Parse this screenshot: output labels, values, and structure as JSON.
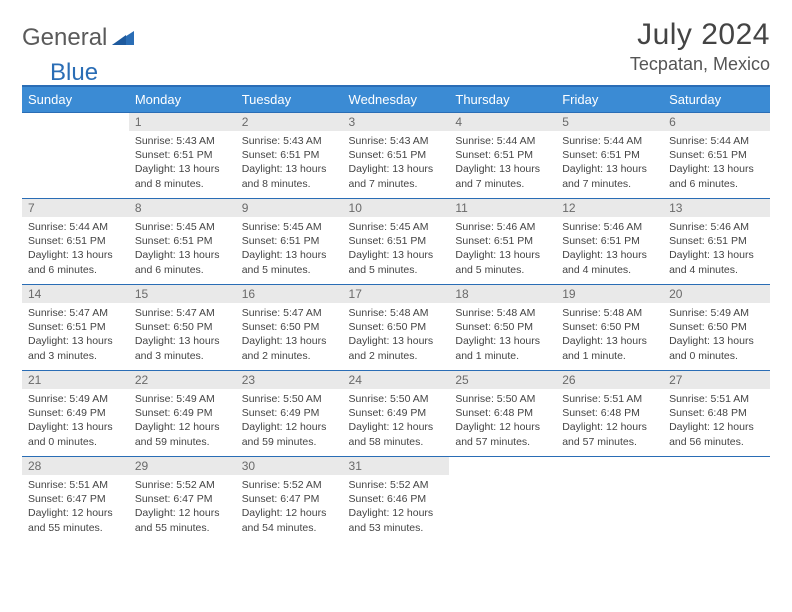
{
  "logo": {
    "word1": "General",
    "word2": "Blue",
    "color1": "#5a5a5a",
    "color2": "#2a6db5"
  },
  "title": "July 2024",
  "location": "Tecpatan, Mexico",
  "header_bg": "#3b8bd4",
  "header_border": "#2a6db5",
  "daynum_bg": "#e9e9e9",
  "weekdays": [
    "Sunday",
    "Monday",
    "Tuesday",
    "Wednesday",
    "Thursday",
    "Friday",
    "Saturday"
  ],
  "weeks": [
    [
      null,
      {
        "n": "1",
        "r": "5:43 AM",
        "s": "6:51 PM",
        "d": "13 hours and 8 minutes."
      },
      {
        "n": "2",
        "r": "5:43 AM",
        "s": "6:51 PM",
        "d": "13 hours and 8 minutes."
      },
      {
        "n": "3",
        "r": "5:43 AM",
        "s": "6:51 PM",
        "d": "13 hours and 7 minutes."
      },
      {
        "n": "4",
        "r": "5:44 AM",
        "s": "6:51 PM",
        "d": "13 hours and 7 minutes."
      },
      {
        "n": "5",
        "r": "5:44 AM",
        "s": "6:51 PM",
        "d": "13 hours and 7 minutes."
      },
      {
        "n": "6",
        "r": "5:44 AM",
        "s": "6:51 PM",
        "d": "13 hours and 6 minutes."
      }
    ],
    [
      {
        "n": "7",
        "r": "5:44 AM",
        "s": "6:51 PM",
        "d": "13 hours and 6 minutes."
      },
      {
        "n": "8",
        "r": "5:45 AM",
        "s": "6:51 PM",
        "d": "13 hours and 6 minutes."
      },
      {
        "n": "9",
        "r": "5:45 AM",
        "s": "6:51 PM",
        "d": "13 hours and 5 minutes."
      },
      {
        "n": "10",
        "r": "5:45 AM",
        "s": "6:51 PM",
        "d": "13 hours and 5 minutes."
      },
      {
        "n": "11",
        "r": "5:46 AM",
        "s": "6:51 PM",
        "d": "13 hours and 5 minutes."
      },
      {
        "n": "12",
        "r": "5:46 AM",
        "s": "6:51 PM",
        "d": "13 hours and 4 minutes."
      },
      {
        "n": "13",
        "r": "5:46 AM",
        "s": "6:51 PM",
        "d": "13 hours and 4 minutes."
      }
    ],
    [
      {
        "n": "14",
        "r": "5:47 AM",
        "s": "6:51 PM",
        "d": "13 hours and 3 minutes."
      },
      {
        "n": "15",
        "r": "5:47 AM",
        "s": "6:50 PM",
        "d": "13 hours and 3 minutes."
      },
      {
        "n": "16",
        "r": "5:47 AM",
        "s": "6:50 PM",
        "d": "13 hours and 2 minutes."
      },
      {
        "n": "17",
        "r": "5:48 AM",
        "s": "6:50 PM",
        "d": "13 hours and 2 minutes."
      },
      {
        "n": "18",
        "r": "5:48 AM",
        "s": "6:50 PM",
        "d": "13 hours and 1 minute."
      },
      {
        "n": "19",
        "r": "5:48 AM",
        "s": "6:50 PM",
        "d": "13 hours and 1 minute."
      },
      {
        "n": "20",
        "r": "5:49 AM",
        "s": "6:50 PM",
        "d": "13 hours and 0 minutes."
      }
    ],
    [
      {
        "n": "21",
        "r": "5:49 AM",
        "s": "6:49 PM",
        "d": "13 hours and 0 minutes."
      },
      {
        "n": "22",
        "r": "5:49 AM",
        "s": "6:49 PM",
        "d": "12 hours and 59 minutes."
      },
      {
        "n": "23",
        "r": "5:50 AM",
        "s": "6:49 PM",
        "d": "12 hours and 59 minutes."
      },
      {
        "n": "24",
        "r": "5:50 AM",
        "s": "6:49 PM",
        "d": "12 hours and 58 minutes."
      },
      {
        "n": "25",
        "r": "5:50 AM",
        "s": "6:48 PM",
        "d": "12 hours and 57 minutes."
      },
      {
        "n": "26",
        "r": "5:51 AM",
        "s": "6:48 PM",
        "d": "12 hours and 57 minutes."
      },
      {
        "n": "27",
        "r": "5:51 AM",
        "s": "6:48 PM",
        "d": "12 hours and 56 minutes."
      }
    ],
    [
      {
        "n": "28",
        "r": "5:51 AM",
        "s": "6:47 PM",
        "d": "12 hours and 55 minutes."
      },
      {
        "n": "29",
        "r": "5:52 AM",
        "s": "6:47 PM",
        "d": "12 hours and 55 minutes."
      },
      {
        "n": "30",
        "r": "5:52 AM",
        "s": "6:47 PM",
        "d": "12 hours and 54 minutes."
      },
      {
        "n": "31",
        "r": "5:52 AM",
        "s": "6:46 PM",
        "d": "12 hours and 53 minutes."
      },
      null,
      null,
      null
    ]
  ],
  "labels": {
    "sunrise": "Sunrise:",
    "sunset": "Sunset:",
    "daylight": "Daylight:"
  }
}
